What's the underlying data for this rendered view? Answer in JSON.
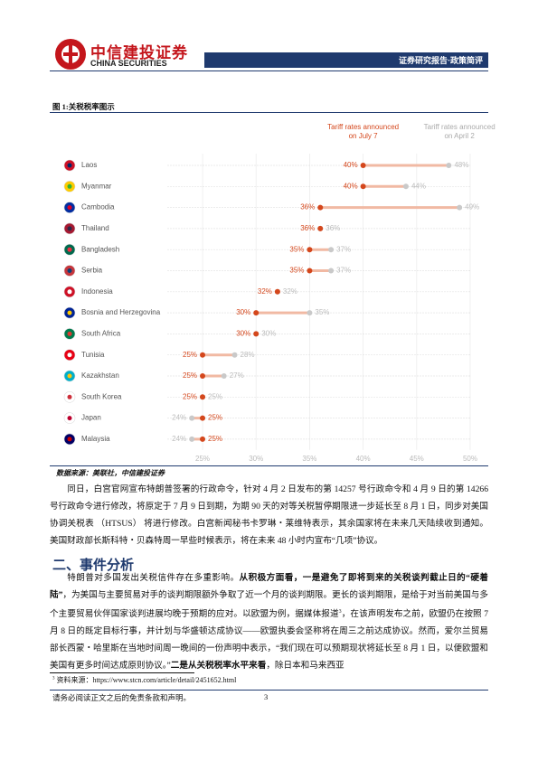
{
  "header": {
    "logo_cn": "中信建投证券",
    "logo_en": "CHINA SECURITIES",
    "report_type": "证券研究报告·政策简评"
  },
  "figure_title": "图 1:关税税率图示",
  "chart_data": {
    "type": "dumbbell",
    "categories": [
      "Laos",
      "Myanmar",
      "Cambodia",
      "Thailand",
      "Bangladesh",
      "Serbia",
      "Indonesia",
      "Bosnia and Herzegovina",
      "South Africa",
      "Tunisia",
      "Kazakhstan",
      "South Korea",
      "Japan",
      "Malaysia"
    ],
    "series": [
      {
        "name": "Tariff rates announced on July 7",
        "color": "#d4471c",
        "values": [
          40,
          40,
          36,
          36,
          35,
          35,
          32,
          30,
          30,
          25,
          25,
          25,
          25,
          25
        ],
        "value_labels": [
          "40%",
          "40%",
          "36%",
          "36%",
          "35%",
          "35%",
          "32%",
          "30%",
          "30%",
          "25%",
          "25%",
          "25%",
          "25%",
          "25%"
        ]
      },
      {
        "name": "Tariff rates announced on April 2",
        "color": "#c9c9c9",
        "values": [
          48,
          44,
          49,
          36,
          37,
          37,
          32,
          35,
          30,
          28,
          27,
          25,
          24,
          24
        ],
        "value_labels": [
          "48%",
          "44%",
          "49%",
          "36%",
          "37%",
          "37%",
          "32%",
          "35%",
          "30%",
          "28%",
          "27%",
          "25%",
          "24%",
          "24%"
        ]
      }
    ],
    "xlim": [
      22,
      50
    ],
    "xticks": [
      {
        "value": 25,
        "label": "25%"
      },
      {
        "value": 30,
        "label": "30%"
      },
      {
        "value": 35,
        "label": "35%"
      },
      {
        "value": 40,
        "label": "40%"
      },
      {
        "value": 45,
        "label": "45%"
      },
      {
        "value": 50,
        "label": "50%"
      }
    ],
    "grid": true
  },
  "source": "数据来源：美联社，中信建投证券",
  "paragraph_1": "同日，白宫官网宣布特朗普签署的行政命令，针对 4 月 2 日发布的第 14257 号行政命令和 4 月 9 日的第 14266 号行政命令进行修改，将原定于 7 月 9 日到期，为期 90 天的对等关税暂停期限进一步延长至 8 月 1 日，同步对美国协调关税表 （HTSUS） 将进行修改。白宫新闻秘书卡罗琳・莱维特表示，其余国家将在未来几天陆续收到通知。美国财政部长斯科特・贝森特周一早些时候表示，将在未来 48 小时内宣布“几项”协议。",
  "section_heading": "二、事件分析",
  "paragraph_2": [
    "特朗普对多国发出关税信件存在多重影响。",
    "从积极方面看，一是避免了即将到来的关税谈判截止日的“硬着陆”",
    "，为美国与主要贸易对手的谈判期限额外争取了近一个月的谈判期限。更长的谈判期限，是给于对当前美国与多个主要贸易伙伴国家谈判进展均晚于预期的应对。以欧盟为例，据媒体报道",
    "3",
    "，在该声明发布之前，欧盟仍在按照 7 月 8 日的既定目标行事，并计划与华盛顿达成协议——欧盟执委会坚称将在周三之前达成协议。然而，爱尔兰贸易部长西蒙・哈里斯在当地时间周一晚间的一份声明中表示，“我们现在可以预期现状将延长至 8 月 1 日，以便欧盟和美国有更多时间达成原则协议。”",
    "二是从关税税率水平来看",
    "，除日本和马来西亚"
  ],
  "footnote": {
    "number": "3",
    "text": "资料来源：https://www.stcn.com/article/detail/2451652.html"
  },
  "footer": {
    "disclaimer": "请务必阅读正文之后的免责条款和声明。",
    "page": "3"
  }
}
